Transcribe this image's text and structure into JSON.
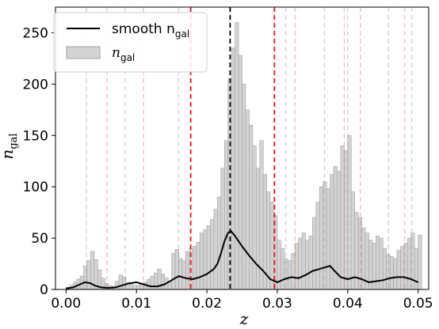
{
  "chart_data": {
    "type": "bar",
    "title": "",
    "xlabel": "z",
    "ylabel": "n",
    "ylabel_sub": "gal",
    "xlim": [
      -0.0015,
      0.0515
    ],
    "ylim": [
      0,
      275
    ],
    "grid": false,
    "legend_position": "top-left",
    "x_ticks": [
      0.0,
      0.01,
      0.02,
      0.03,
      0.04,
      0.05
    ],
    "x_tick_labels": [
      "0.00",
      "0.01",
      "0.02",
      "0.03",
      "0.04",
      "0.05"
    ],
    "y_ticks": [
      0,
      50,
      100,
      150,
      200,
      250
    ],
    "y_tick_labels": [
      "0",
      "50",
      "100",
      "150",
      "200",
      "250"
    ],
    "legend": [
      {
        "label": "smooth n",
        "sub": "gal",
        "kind": "line"
      },
      {
        "label": "n",
        "sub": "gal",
        "kind": "patch"
      }
    ],
    "histogram": {
      "name": "n_gal",
      "bin_start": 0.0,
      "bin_width": 0.0005,
      "color": "#d3d3d3",
      "edgecolor": "#a0a0a0",
      "counts": [
        2,
        4,
        7,
        10,
        13,
        23,
        28,
        37,
        29,
        19,
        11,
        6,
        4,
        3,
        8,
        14,
        12,
        7,
        5,
        4,
        4,
        6,
        7,
        10,
        13,
        16,
        20,
        15,
        11,
        8,
        35,
        39,
        30,
        28,
        37,
        40,
        42,
        46,
        55,
        58,
        62,
        68,
        78,
        90,
        118,
        145,
        205,
        235,
        260,
        228,
        200,
        175,
        160,
        140,
        118,
        145,
        112,
        95,
        85,
        72,
        48,
        40,
        30,
        28,
        35,
        45,
        50,
        55,
        48,
        52,
        70,
        85,
        100,
        105,
        98,
        112,
        120,
        115,
        140,
        135,
        150,
        95,
        75,
        70,
        60,
        55,
        48,
        45,
        52,
        50,
        40,
        34,
        32,
        30,
        38,
        42,
        45,
        50,
        55,
        40,
        53
      ]
    },
    "smooth_line": {
      "name": "smooth n_gal",
      "color": "#000000",
      "x": [
        0.0,
        0.001,
        0.002,
        0.0027,
        0.0035,
        0.004,
        0.005,
        0.006,
        0.007,
        0.008,
        0.009,
        0.01,
        0.011,
        0.012,
        0.013,
        0.014,
        0.015,
        0.016,
        0.017,
        0.018,
        0.019,
        0.02,
        0.021,
        0.0215,
        0.022,
        0.0225,
        0.023,
        0.0234,
        0.024,
        0.025,
        0.026,
        0.027,
        0.028,
        0.029,
        0.03,
        0.031,
        0.032,
        0.033,
        0.034,
        0.035,
        0.036,
        0.037,
        0.0375,
        0.038,
        0.039,
        0.04,
        0.041,
        0.042,
        0.043,
        0.044,
        0.045,
        0.046,
        0.047,
        0.048,
        0.049,
        0.05
      ],
      "y": [
        1,
        2,
        5,
        7,
        6,
        4,
        2,
        1.5,
        2,
        4,
        6,
        7,
        5,
        3,
        3,
        5,
        9,
        13,
        11,
        10,
        12,
        15,
        20,
        25,
        35,
        47,
        55,
        57,
        52,
        42,
        33,
        25,
        18,
        10,
        7,
        10,
        12,
        11,
        14,
        18,
        20,
        22,
        23,
        19,
        12,
        10,
        12,
        10,
        7,
        8,
        9,
        11,
        12,
        12,
        10,
        7
      ]
    },
    "vlines": [
      {
        "x": 0.0233,
        "color": "#000000",
        "style": "dashed",
        "width": 1.8,
        "opacity": 1.0
      },
      {
        "x": 0.0177,
        "color": "#ee1111",
        "style": "dashed",
        "width": 1.8,
        "opacity": 1.0
      },
      {
        "x": 0.0296,
        "color": "#ee1111",
        "style": "dashed",
        "width": 1.8,
        "opacity": 1.0
      },
      {
        "x": 0.0029,
        "color": "#999999",
        "style": "dashed",
        "width": 1.2,
        "opacity": 0.5
      },
      {
        "x": 0.0084,
        "color": "#999999",
        "style": "dashed",
        "width": 1.2,
        "opacity": 0.5
      },
      {
        "x": 0.016,
        "color": "#999999",
        "style": "dashed",
        "width": 1.2,
        "opacity": 0.5
      },
      {
        "x": 0.0312,
        "color": "#999999",
        "style": "dashed",
        "width": 1.2,
        "opacity": 0.5
      },
      {
        "x": 0.0367,
        "color": "#999999",
        "style": "dashed",
        "width": 1.2,
        "opacity": 0.5
      },
      {
        "x": 0.04,
        "color": "#999999",
        "style": "dashed",
        "width": 1.2,
        "opacity": 0.5
      },
      {
        "x": 0.0458,
        "color": "#999999",
        "style": "dashed",
        "width": 1.2,
        "opacity": 0.5
      },
      {
        "x": 0.0491,
        "color": "#999999",
        "style": "dashed",
        "width": 1.2,
        "opacity": 0.5
      },
      {
        "x": 0.0058,
        "color": "#ee6666",
        "style": "dashed",
        "width": 1.2,
        "opacity": 0.5
      },
      {
        "x": 0.011,
        "color": "#ee6666",
        "style": "dashed",
        "width": 1.2,
        "opacity": 0.5
      },
      {
        "x": 0.0325,
        "color": "#ee6666",
        "style": "dashed",
        "width": 1.2,
        "opacity": 0.5
      },
      {
        "x": 0.0395,
        "color": "#ee6666",
        "style": "dashed",
        "width": 1.2,
        "opacity": 0.5
      },
      {
        "x": 0.0418,
        "color": "#ee6666",
        "style": "dashed",
        "width": 1.2,
        "opacity": 0.5
      },
      {
        "x": 0.0481,
        "color": "#ee6666",
        "style": "dashed",
        "width": 1.2,
        "opacity": 0.5
      }
    ]
  }
}
